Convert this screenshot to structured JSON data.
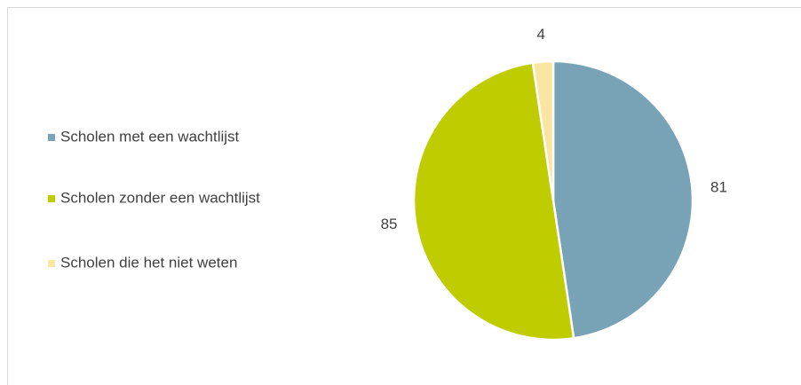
{
  "chart_data": {
    "type": "pie",
    "categories": [
      "Scholen met een wachtlijst",
      "Scholen zonder een wachtlijst",
      "Scholen die het niet weten"
    ],
    "values": [
      81,
      85,
      4
    ],
    "colors": [
      "#78a3b7",
      "#bfcc00",
      "#fbe5a2"
    ],
    "legend": "left"
  }
}
